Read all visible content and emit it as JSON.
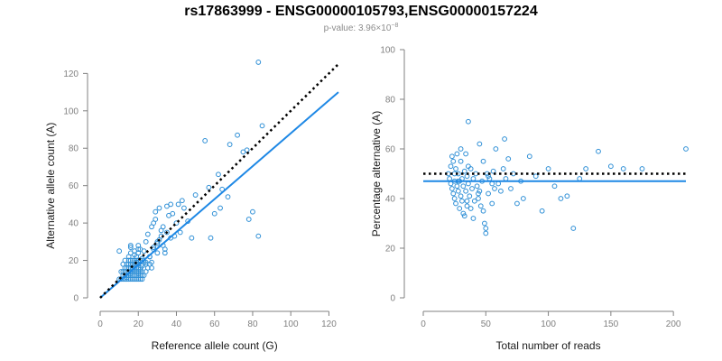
{
  "title": "rs17863999 - ENSG00000105793,ENSG00000157224",
  "subtitle": {
    "text": "p-value: 3.96×10",
    "exponent": "−8"
  },
  "colors": {
    "points": "#2e8fd6",
    "fit": "#1e88e5",
    "reference": "#000000",
    "axis": "#808080",
    "subtitle": "#8c8c8c"
  },
  "chart_data": [
    {
      "type": "scatter",
      "title": "",
      "xlabel": "Reference allele count (G)",
      "ylabel": "Alternative allele count (A)",
      "xlim": [
        0,
        125
      ],
      "ylim": [
        0,
        125
      ],
      "xticks": [
        0,
        20,
        40,
        60,
        80,
        100,
        120
      ],
      "yticks": [
        0,
        20,
        40,
        60,
        80,
        100,
        120
      ],
      "grid": false,
      "series": [
        {
          "kind": "points",
          "x": [
            10,
            11,
            12,
            13,
            14,
            15,
            16,
            17,
            18,
            19,
            20,
            21,
            22,
            12,
            13,
            14,
            15,
            16,
            17,
            18,
            19,
            20,
            21,
            22,
            23,
            11,
            12,
            13,
            14,
            15,
            16,
            17,
            18,
            19,
            20,
            21,
            13,
            14,
            15,
            16,
            17,
            18,
            19,
            20,
            21,
            12,
            14,
            15,
            16,
            17,
            18,
            19,
            20,
            22,
            13,
            15,
            16,
            17,
            18,
            19,
            20,
            21,
            14,
            16,
            17,
            18,
            19,
            20,
            21,
            22,
            23,
            15,
            16,
            18,
            19,
            20,
            21,
            22,
            24,
            16,
            18,
            20,
            22,
            23,
            24,
            25,
            26,
            27,
            28,
            30,
            24,
            26,
            28,
            30,
            32,
            34,
            25,
            27,
            29,
            31,
            33,
            35,
            26,
            28,
            30,
            32,
            34,
            36,
            27,
            29,
            31,
            33,
            37,
            38,
            40,
            35,
            37,
            39,
            42,
            44,
            46,
            41,
            43,
            48,
            50,
            55,
            57,
            60,
            62,
            64,
            68,
            72,
            75,
            77,
            80,
            83,
            85,
            58,
            63,
            67,
            78,
            83,
            16,
            18,
            20,
            22,
            24,
            10
          ],
          "y": [
            10,
            10,
            10,
            10,
            10,
            10,
            10,
            10,
            10,
            10,
            10,
            10,
            10,
            12,
            12,
            12,
            12,
            12,
            12,
            12,
            12,
            12,
            12,
            12,
            12,
            14,
            14,
            14,
            14,
            14,
            14,
            14,
            14,
            14,
            14,
            14,
            16,
            16,
            16,
            16,
            16,
            16,
            16,
            16,
            16,
            18,
            18,
            18,
            18,
            18,
            18,
            18,
            18,
            18,
            20,
            20,
            20,
            20,
            20,
            20,
            20,
            20,
            11,
            13,
            15,
            17,
            19,
            13,
            15,
            17,
            19,
            22,
            24,
            25,
            22,
            24,
            26,
            21,
            18,
            27,
            23,
            28,
            20,
            25,
            30,
            16,
            22,
            19,
            27,
            24,
            14,
            18,
            26,
            29,
            33,
            24,
            34,
            38,
            42,
            31,
            28,
            35,
            22,
            40,
            30,
            36,
            26,
            44,
            16,
            46,
            48,
            38,
            32,
            45,
            40,
            49,
            50,
            33,
            35,
            48,
            41,
            50,
            52,
            32,
            55,
            84,
            59,
            45,
            66,
            58,
            82,
            87,
            78,
            79,
            46,
            126,
            92,
            32,
            48,
            54,
            42,
            33,
            28,
            15,
            26,
            14,
            19,
            25
          ]
        },
        {
          "kind": "fit",
          "x": [
            0,
            125
          ],
          "y": [
            0,
            110
          ]
        },
        {
          "kind": "reference",
          "x": [
            0,
            125
          ],
          "y": [
            0,
            125
          ]
        }
      ]
    },
    {
      "type": "scatter",
      "title": "",
      "xlabel": "Total number of reads",
      "ylabel": "Percentage alternative (A)",
      "xlim": [
        0,
        210
      ],
      "ylim": [
        0,
        100
      ],
      "xticks": [
        0,
        50,
        100,
        150,
        200
      ],
      "yticks": [
        0,
        20,
        40,
        60,
        80,
        100
      ],
      "grid": false,
      "series": [
        {
          "kind": "points",
          "x": [
            20,
            21,
            22,
            22,
            23,
            23,
            24,
            24,
            25,
            25,
            25,
            26,
            26,
            27,
            27,
            28,
            28,
            29,
            29,
            30,
            30,
            30,
            31,
            31,
            32,
            32,
            33,
            33,
            34,
            34,
            35,
            35,
            36,
            36,
            37,
            38,
            38,
            39,
            40,
            40,
            41,
            42,
            43,
            44,
            45,
            46,
            47,
            48,
            48,
            49,
            50,
            50,
            51,
            52,
            53,
            55,
            56,
            57,
            58,
            60,
            62,
            64,
            65,
            66,
            68,
            70,
            72,
            75,
            78,
            80,
            85,
            90,
            95,
            100,
            105,
            110,
            115,
            120,
            125,
            130,
            140,
            150,
            160,
            175,
            210,
            35,
            45,
            55,
            28,
            36,
            44,
            52
          ],
          "y": [
            50,
            48,
            46,
            53,
            44,
            57,
            42,
            55,
            40,
            50,
            47,
            38,
            52,
            45,
            58,
            43,
            50,
            36,
            47,
            41,
            55,
            60,
            39,
            48,
            34,
            45,
            51,
            33,
            43,
            58,
            37,
            49,
            71,
            46,
            41,
            36,
            52,
            44,
            32,
            48,
            39,
            50,
            45,
            40,
            62,
            37,
            47,
            55,
            35,
            30,
            26,
            28,
            50,
            42,
            48,
            38,
            51,
            44,
            60,
            46,
            43,
            52,
            64,
            48,
            56,
            44,
            50,
            38,
            47,
            40,
            57,
            49,
            35,
            52,
            45,
            40,
            41,
            28,
            48,
            52,
            59,
            53,
            52,
            52,
            60,
            39,
            43,
            46,
            47,
            53,
            42,
            49
          ]
        },
        {
          "kind": "fit",
          "x": [
            0,
            210
          ],
          "y": [
            47,
            47
          ]
        },
        {
          "kind": "reference",
          "x": [
            0,
            210
          ],
          "y": [
            50,
            50
          ]
        }
      ]
    }
  ]
}
